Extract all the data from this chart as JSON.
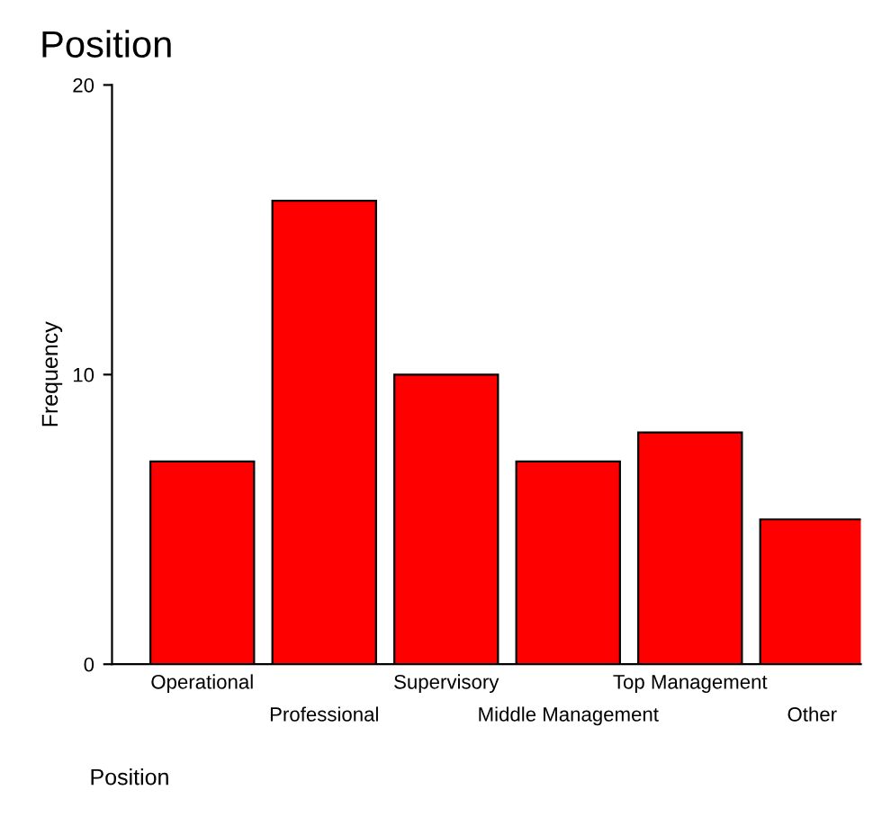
{
  "chart_data": {
    "type": "bar",
    "title": "Position",
    "xlabel": "Position",
    "ylabel": "Frequency",
    "categories": [
      "Operational",
      "Professional",
      "Supervisory",
      "Middle Management",
      "Top Management",
      "Other"
    ],
    "values": [
      7,
      16,
      10,
      7,
      8,
      5
    ],
    "color": "#ff0000",
    "ylim": [
      0,
      20
    ],
    "yticks": [
      0,
      10,
      20
    ],
    "grid": false,
    "legend": false
  }
}
